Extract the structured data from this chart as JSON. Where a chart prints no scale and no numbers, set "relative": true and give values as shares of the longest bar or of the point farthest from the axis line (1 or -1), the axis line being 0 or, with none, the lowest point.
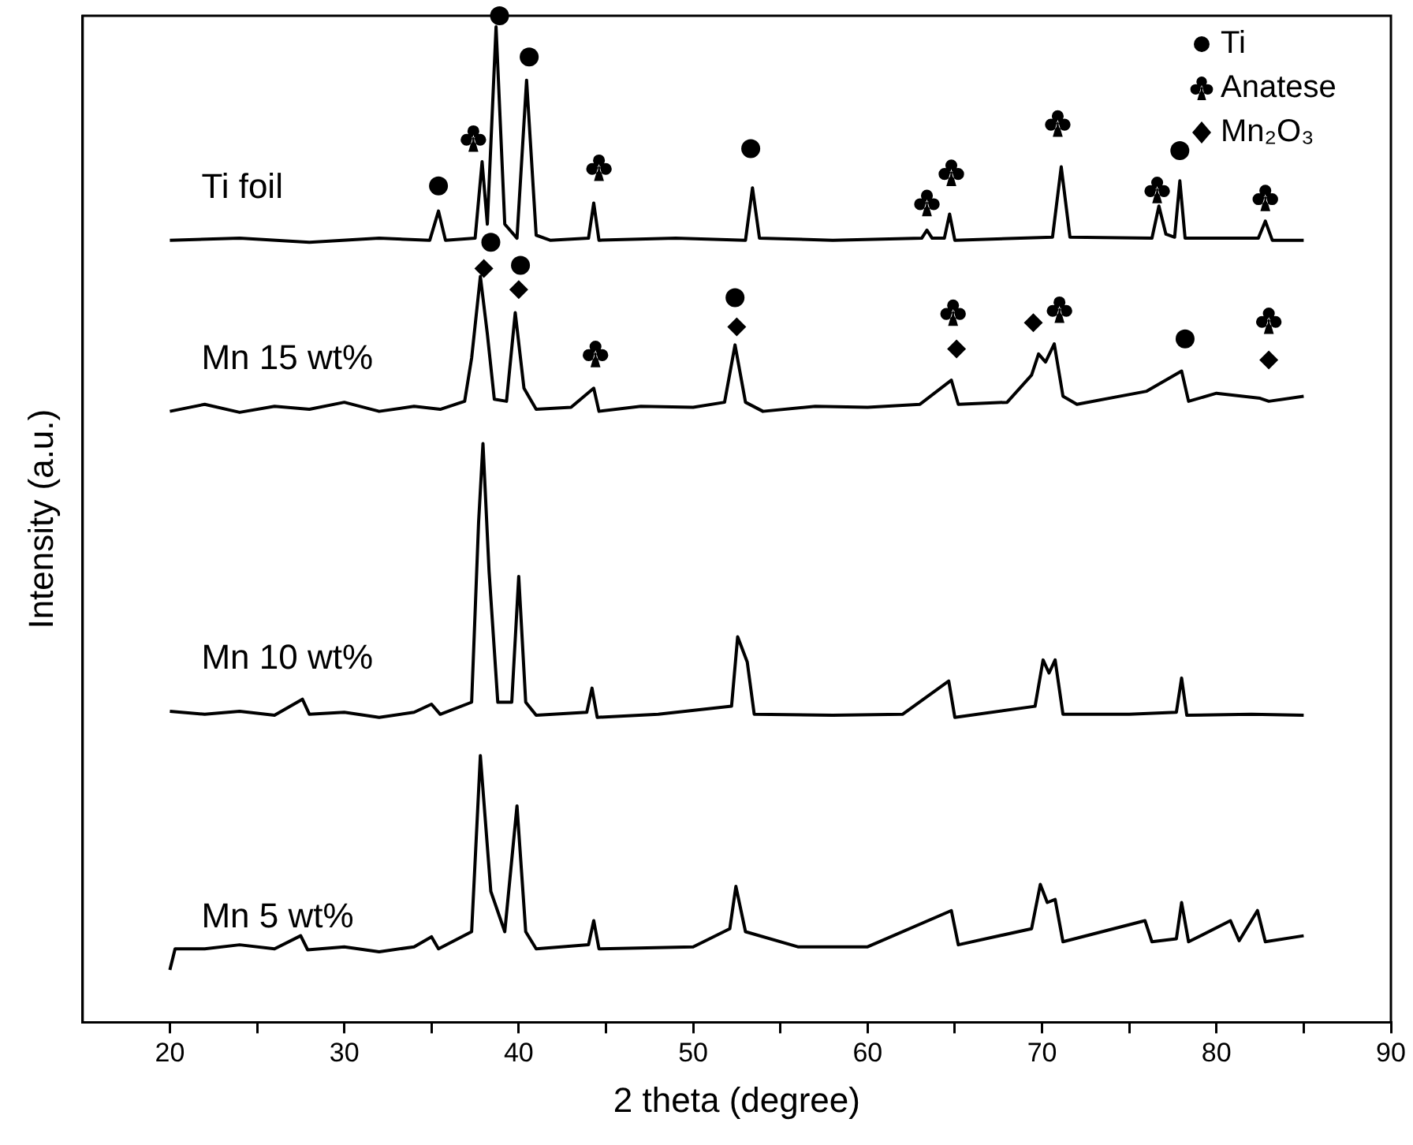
{
  "chart_data": {
    "type": "line",
    "xlabel": "2 theta (degree)",
    "ylabel": "Intensity (a.u.)",
    "relative": true,
    "xlim": [
      15,
      90
    ],
    "xticks": [
      20,
      {
        "value": 25,
        "label": null
      },
      30,
      {
        "value": 35,
        "label": null
      },
      40,
      {
        "value": 45,
        "label": null
      },
      50,
      {
        "value": 55,
        "label": null
      },
      60,
      {
        "value": 65,
        "label": null
      },
      70,
      {
        "value": 75,
        "label": null
      },
      80,
      {
        "value": 85,
        "label": null
      },
      90
    ],
    "legend": "top right",
    "series": [
      {
        "name": "Ti foil",
        "color": "#000000",
        "marker": "none",
        "x": [
          20,
          24,
          28,
          32,
          34.9,
          35.4,
          35.8,
          37.5,
          37.9,
          38.2,
          38.7,
          39.2,
          39.9,
          40.45,
          41.0,
          41.8,
          44.0,
          44.3,
          44.6,
          49,
          53.0,
          53.4,
          53.8,
          58,
          63.1,
          63.4,
          63.7,
          64.4,
          64.7,
          65.0,
          70.6,
          71.1,
          71.6,
          76.3,
          76.7,
          77.1,
          77.6,
          77.9,
          78.2,
          82.4,
          82.8,
          83.2,
          85
        ],
        "values": [
          0.777,
          0.779,
          0.775,
          0.779,
          0.777,
          0.806,
          0.777,
          0.779,
          0.855,
          0.793,
          0.989,
          0.793,
          0.779,
          0.936,
          0.782,
          0.777,
          0.779,
          0.814,
          0.777,
          0.779,
          0.777,
          0.829,
          0.779,
          0.777,
          0.779,
          0.787,
          0.779,
          0.779,
          0.803,
          0.777,
          0.78,
          0.85,
          0.78,
          0.779,
          0.811,
          0.783,
          0.78,
          0.836,
          0.779,
          0.779,
          0.796,
          0.777,
          0.777
        ]
      },
      {
        "name": "Mn 15 wt%",
        "color": "#000000",
        "marker": "none",
        "x": [
          20,
          22,
          24,
          26,
          28,
          30,
          32,
          34,
          35.5,
          36.9,
          37.3,
          37.8,
          38.2,
          38.6,
          39.3,
          39.8,
          40.3,
          41,
          43,
          44.3,
          44.6,
          47,
          50,
          51.8,
          52.4,
          53.0,
          54,
          57,
          60,
          63,
          64.8,
          65.2,
          68,
          69.4,
          69.8,
          70.2,
          70.7,
          71.2,
          72,
          76,
          78.0,
          78.4,
          80,
          82.5,
          83,
          85
        ],
        "values": [
          0.607,
          0.614,
          0.606,
          0.612,
          0.609,
          0.616,
          0.607,
          0.612,
          0.609,
          0.617,
          0.66,
          0.741,
          0.684,
          0.619,
          0.617,
          0.705,
          0.63,
          0.609,
          0.611,
          0.63,
          0.607,
          0.612,
          0.611,
          0.616,
          0.673,
          0.616,
          0.607,
          0.612,
          0.611,
          0.614,
          0.638,
          0.614,
          0.616,
          0.643,
          0.664,
          0.656,
          0.674,
          0.622,
          0.614,
          0.627,
          0.647,
          0.617,
          0.625,
          0.62,
          0.617,
          0.622
        ]
      },
      {
        "name": "Mn 10 wt%",
        "color": "#000000",
        "marker": "none",
        "x": [
          20,
          22,
          24,
          26,
          27.6,
          28,
          30,
          32,
          34,
          35,
          35.5,
          37.3,
          37.7,
          37.95,
          38.3,
          38.8,
          39.6,
          40.0,
          40.4,
          41,
          43.9,
          44.2,
          44.5,
          48,
          52.2,
          52.55,
          53.1,
          53.5,
          58,
          62,
          64.65,
          65,
          69.6,
          70.06,
          70.4,
          70.75,
          71.2,
          75,
          77.7,
          78.0,
          78.3,
          82,
          85
        ],
        "values": [
          0.309,
          0.306,
          0.309,
          0.305,
          0.321,
          0.306,
          0.308,
          0.303,
          0.308,
          0.316,
          0.306,
          0.318,
          0.497,
          0.575,
          0.448,
          0.318,
          0.318,
          0.443,
          0.318,
          0.305,
          0.308,
          0.332,
          0.303,
          0.306,
          0.314,
          0.383,
          0.358,
          0.306,
          0.305,
          0.306,
          0.339,
          0.303,
          0.314,
          0.36,
          0.347,
          0.36,
          0.306,
          0.306,
          0.308,
          0.342,
          0.305,
          0.306,
          0.305
        ]
      },
      {
        "name": "Mn 5 wt%",
        "color": "#000000",
        "marker": "none",
        "x": [
          20,
          20.3,
          22,
          24,
          26,
          27.5,
          27.9,
          30,
          32,
          34,
          35,
          35.4,
          37.3,
          37.8,
          38.4,
          39.2,
          39.9,
          40.4,
          41,
          44,
          44.3,
          44.6,
          50,
          52.1,
          52.45,
          53,
          56,
          60,
          64.8,
          65.2,
          69.4,
          69.9,
          70.3,
          70.75,
          71.2,
          75.9,
          76.3,
          77.7,
          78.0,
          78.4,
          80.8,
          81.3,
          82.35,
          82.8,
          85
        ],
        "values": [
          0.052,
          0.073,
          0.073,
          0.077,
          0.073,
          0.086,
          0.072,
          0.075,
          0.07,
          0.075,
          0.085,
          0.073,
          0.09,
          0.265,
          0.13,
          0.09,
          0.215,
          0.09,
          0.073,
          0.077,
          0.101,
          0.073,
          0.075,
          0.093,
          0.135,
          0.09,
          0.075,
          0.075,
          0.111,
          0.077,
          0.093,
          0.137,
          0.119,
          0.122,
          0.08,
          0.101,
          0.08,
          0.083,
          0.119,
          0.08,
          0.101,
          0.081,
          0.111,
          0.08,
          0.086
        ]
      },
      {
        "type": "scatter",
        "name": "Ti",
        "color": "#000000",
        "marker": "circle",
        "x": [
          35.4,
          38.9,
          40.6,
          53.3,
          77.9,
          38.4,
          40.1,
          52.4,
          78.2
        ],
        "values": [
          0.831,
          1,
          0.959,
          0.868,
          0.866,
          0.775,
          0.752,
          0.72,
          0.679
        ]
      },
      {
        "type": "scatter",
        "name": "Anatese",
        "color": "#000000",
        "marker": "cross",
        "x": [
          37.4,
          44.6,
          63.4,
          64.8,
          70.9,
          76.6,
          82.8,
          44.4,
          64.9,
          71.0,
          83.0
        ],
        "values": [
          0.878,
          0.849,
          0.814,
          0.844,
          0.893,
          0.827,
          0.819,
          0.664,
          0.705,
          0.708,
          0.697
        ]
      },
      {
        "type": "scatter",
        "name": "Mn₂O₃",
        "color": "#000000",
        "marker": "diamond",
        "x": [
          38.0,
          40.0,
          52.5,
          65.1,
          69.5,
          83.0
        ],
        "values": [
          0.749,
          0.728,
          0.691,
          0.669,
          0.695,
          0.658
        ]
      }
    ]
  }
}
